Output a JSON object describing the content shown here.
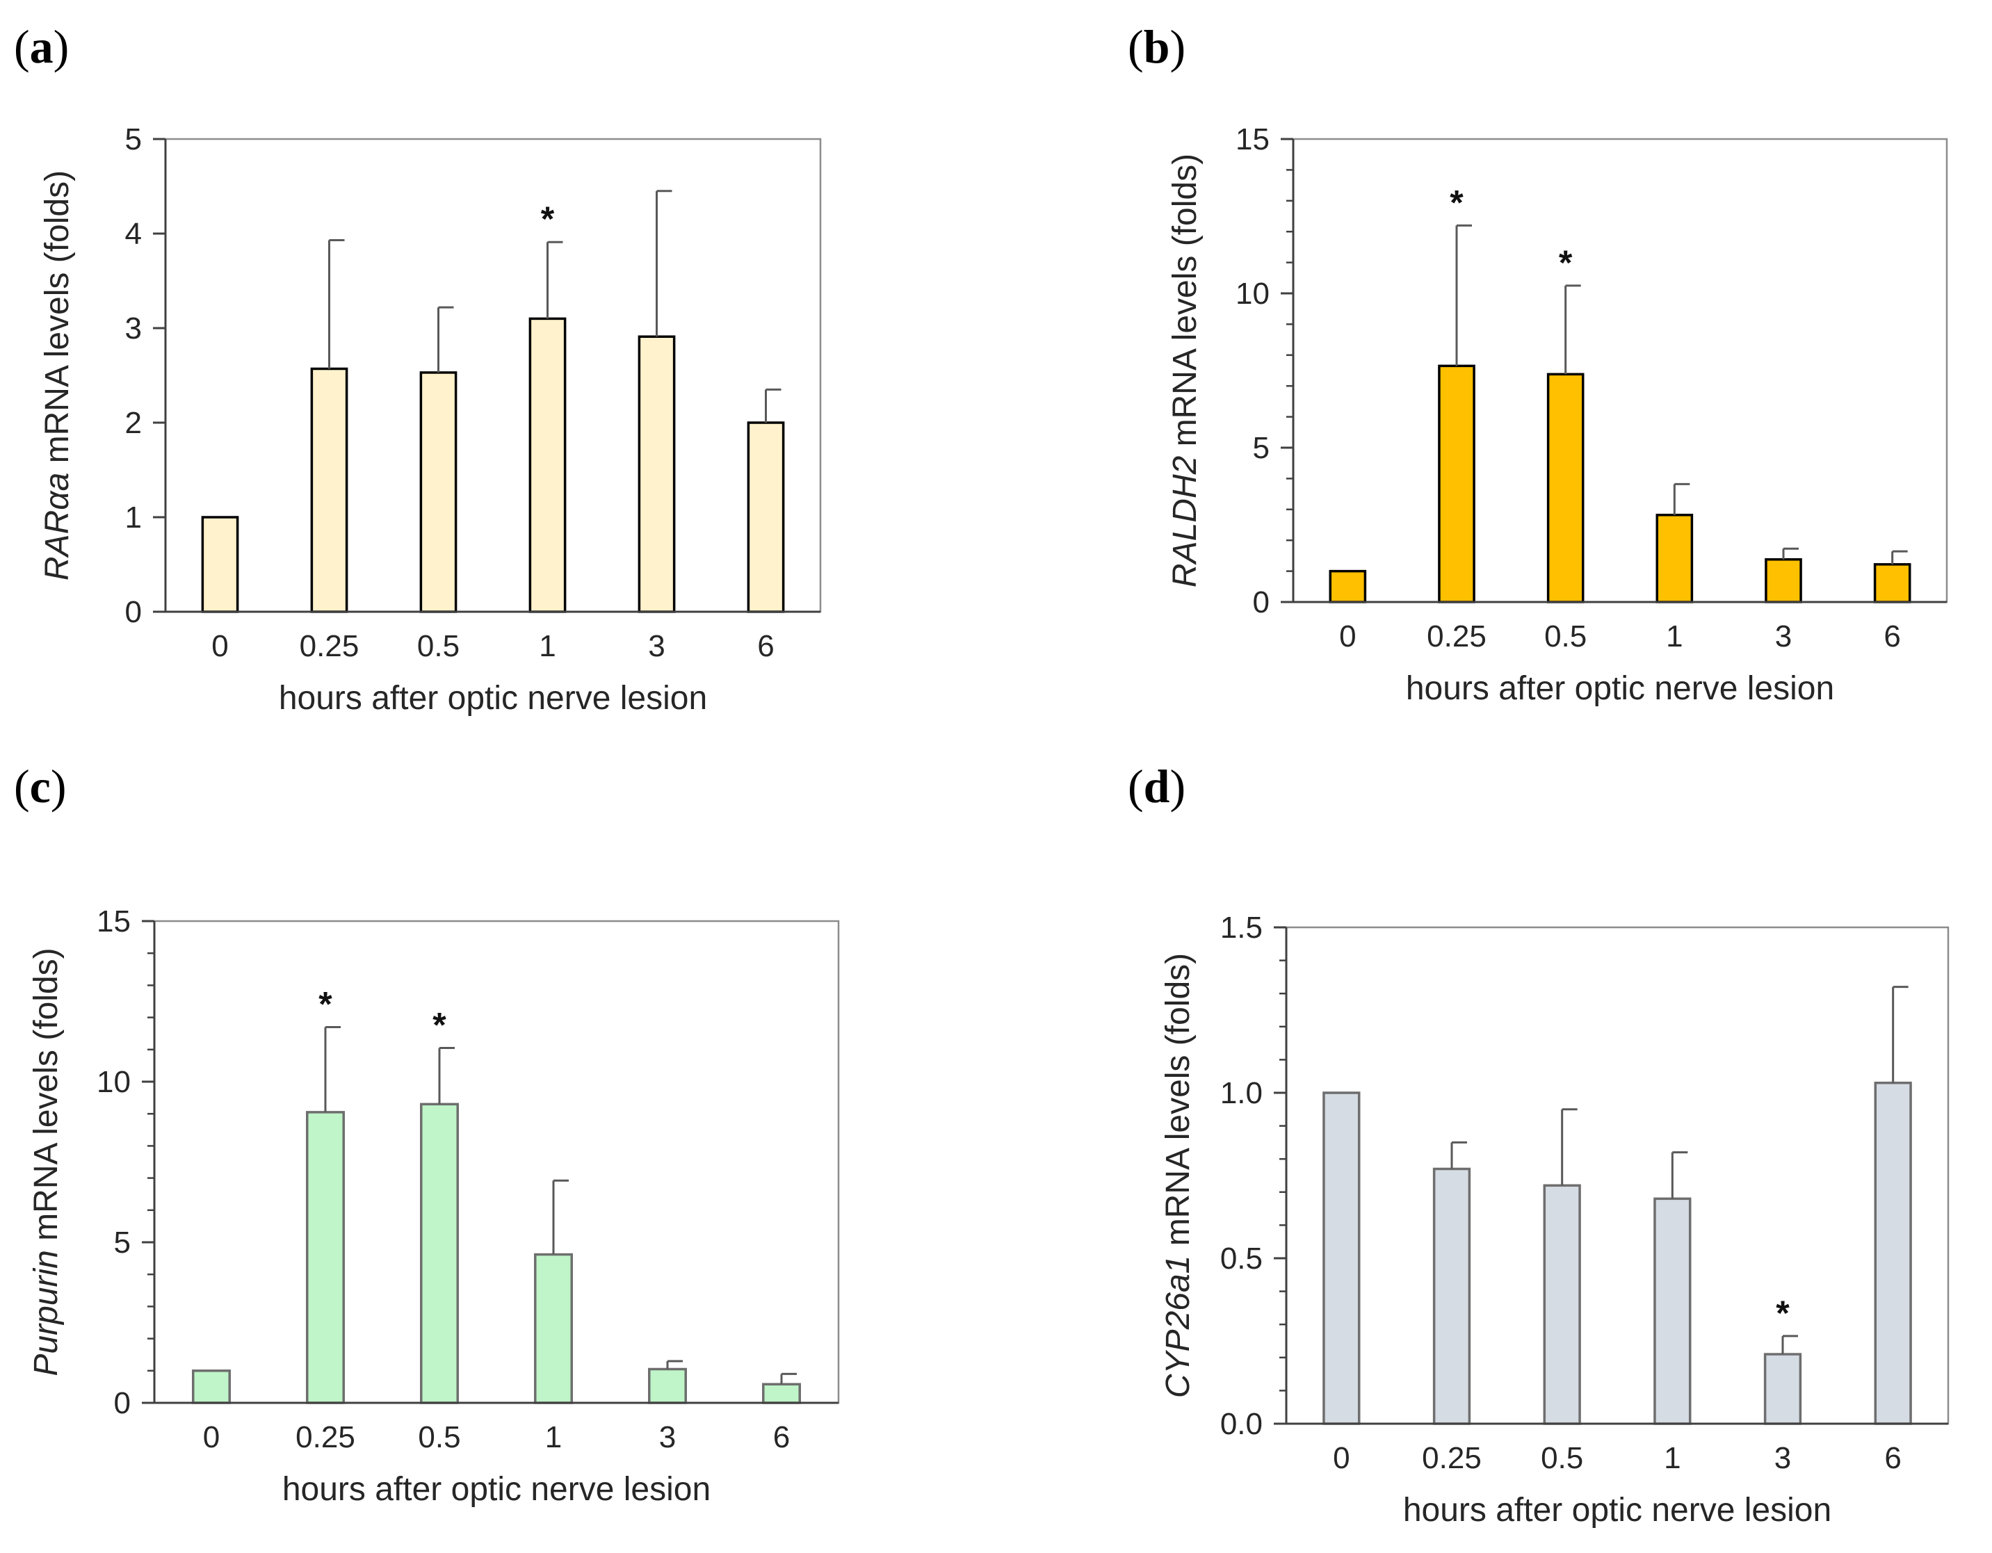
{
  "figure": {
    "panels": [
      {
        "id": "a",
        "letter": "a"
      },
      {
        "id": "b",
        "letter": "b"
      },
      {
        "id": "c",
        "letter": "c"
      },
      {
        "id": "d",
        "letter": "d"
      }
    ]
  },
  "chart_data": [
    {
      "panel": "a",
      "type": "bar",
      "categories": [
        "0",
        "0.25",
        "0.5",
        "1",
        "3",
        "6"
      ],
      "values": [
        1.0,
        2.57,
        2.53,
        3.1,
        2.91,
        2.0
      ],
      "errors": [
        0.0,
        1.36,
        0.69,
        0.81,
        1.54,
        0.35
      ],
      "significant": [
        false,
        false,
        false,
        true,
        false,
        false
      ],
      "significance_marker": "*",
      "ylabel_italic": "RARαa",
      "ylabel_rest": " mRNA levels (folds)",
      "xlabel": "hours after optic nerve lesion",
      "ylim": [
        0,
        5
      ],
      "yticks": [
        "0",
        "1",
        "2",
        "3",
        "4",
        "5"
      ],
      "minor_ticks": 0,
      "fill": "#FFF2CC",
      "stroke": "#000000"
    },
    {
      "panel": "b",
      "type": "bar",
      "categories": [
        "0",
        "0.25",
        "0.5",
        "1",
        "3",
        "6"
      ],
      "values": [
        1.0,
        7.65,
        7.38,
        2.82,
        1.38,
        1.22
      ],
      "errors": [
        0.0,
        4.55,
        2.87,
        1.0,
        0.35,
        0.42
      ],
      "significant": [
        false,
        true,
        true,
        false,
        false,
        false
      ],
      "significance_marker": "*",
      "ylabel_italic": "RALDH2",
      "ylabel_rest": " mRNA levels (folds)",
      "xlabel": "hours after optic nerve lesion",
      "ylim": [
        0,
        15
      ],
      "yticks": [
        "0",
        "5",
        "10",
        "15"
      ],
      "minor_ticks": 4,
      "fill": "#FFC000",
      "stroke": "#000000"
    },
    {
      "panel": "c",
      "type": "bar",
      "categories": [
        "0",
        "0.25",
        "0.5",
        "1",
        "3",
        "6"
      ],
      "values": [
        1.0,
        9.05,
        9.3,
        4.62,
        1.05,
        0.58
      ],
      "errors": [
        0.0,
        2.65,
        1.75,
        2.3,
        0.25,
        0.32
      ],
      "significant": [
        false,
        true,
        true,
        false,
        false,
        false
      ],
      "significance_marker": "*",
      "ylabel_italic": "Purpurin",
      "ylabel_rest": " mRNA levels (folds)",
      "xlabel": "hours after optic nerve lesion",
      "ylim": [
        0,
        15
      ],
      "yticks": [
        "0",
        "5",
        "10",
        "15"
      ],
      "minor_ticks": 4,
      "fill": "#BFF5C8",
      "stroke": "#6E6E6E"
    },
    {
      "panel": "d",
      "type": "bar",
      "categories": [
        "0",
        "0.25",
        "0.5",
        "1",
        "3",
        "6"
      ],
      "values": [
        1.0,
        0.77,
        0.72,
        0.68,
        0.21,
        1.03
      ],
      "errors": [
        0.0,
        0.08,
        0.23,
        0.14,
        0.055,
        0.29
      ],
      "significant": [
        false,
        false,
        false,
        false,
        true,
        false
      ],
      "significance_marker": "*",
      "ylabel_italic": "CYP26a1",
      "ylabel_rest": "  mRNA levels (folds)",
      "xlabel": "hours after optic nerve lesion",
      "ylim": [
        0,
        1.5
      ],
      "yticks": [
        "0.0",
        "0.5",
        "1.0",
        "1.5"
      ],
      "minor_ticks": 4,
      "fill": "#D6DCE4",
      "stroke": "#6E6E6E"
    }
  ]
}
